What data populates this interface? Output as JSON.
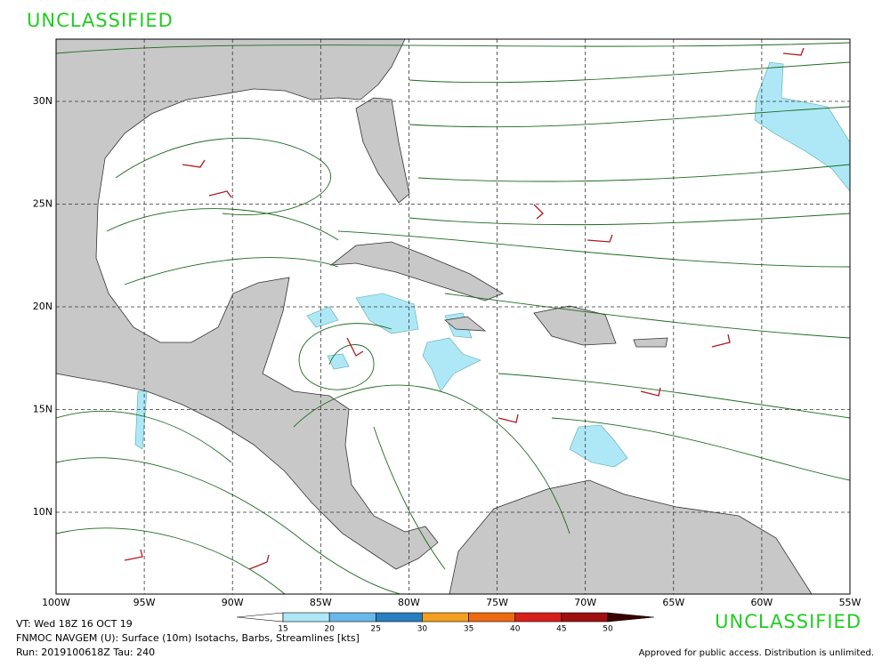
{
  "header": {
    "classification_top": "UNCLASSIFIED"
  },
  "map": {
    "lon_labels": [
      "100W",
      "95W",
      "90W",
      "85W",
      "80W",
      "75W",
      "70W",
      "65W",
      "60W",
      "55W"
    ],
    "lat_labels": [
      "30N",
      "25N",
      "20N",
      "15N",
      "10N"
    ]
  },
  "colorbar": {
    "levels": [
      15,
      20,
      25,
      30,
      35,
      40,
      45,
      50
    ],
    "colors": [
      "#ffffff",
      "#aee8f7",
      "#6ab8ea",
      "#2a7fc0",
      "#f2a020",
      "#ee6a10",
      "#d8201a",
      "#a00f10",
      "#3a0000"
    ]
  },
  "footer": {
    "valid_time": "VT: Wed 18Z 16 OCT 19",
    "product": "FNMOC NAVGEM (U): Surface (10m) Isotachs, Barbs, Streamlines [kts]",
    "run": "Run: 2019100618Z Tau: 240",
    "classification_bottom": "UNCLASSIFIED",
    "release": "Approved for public access. Distribution is unlimited."
  }
}
